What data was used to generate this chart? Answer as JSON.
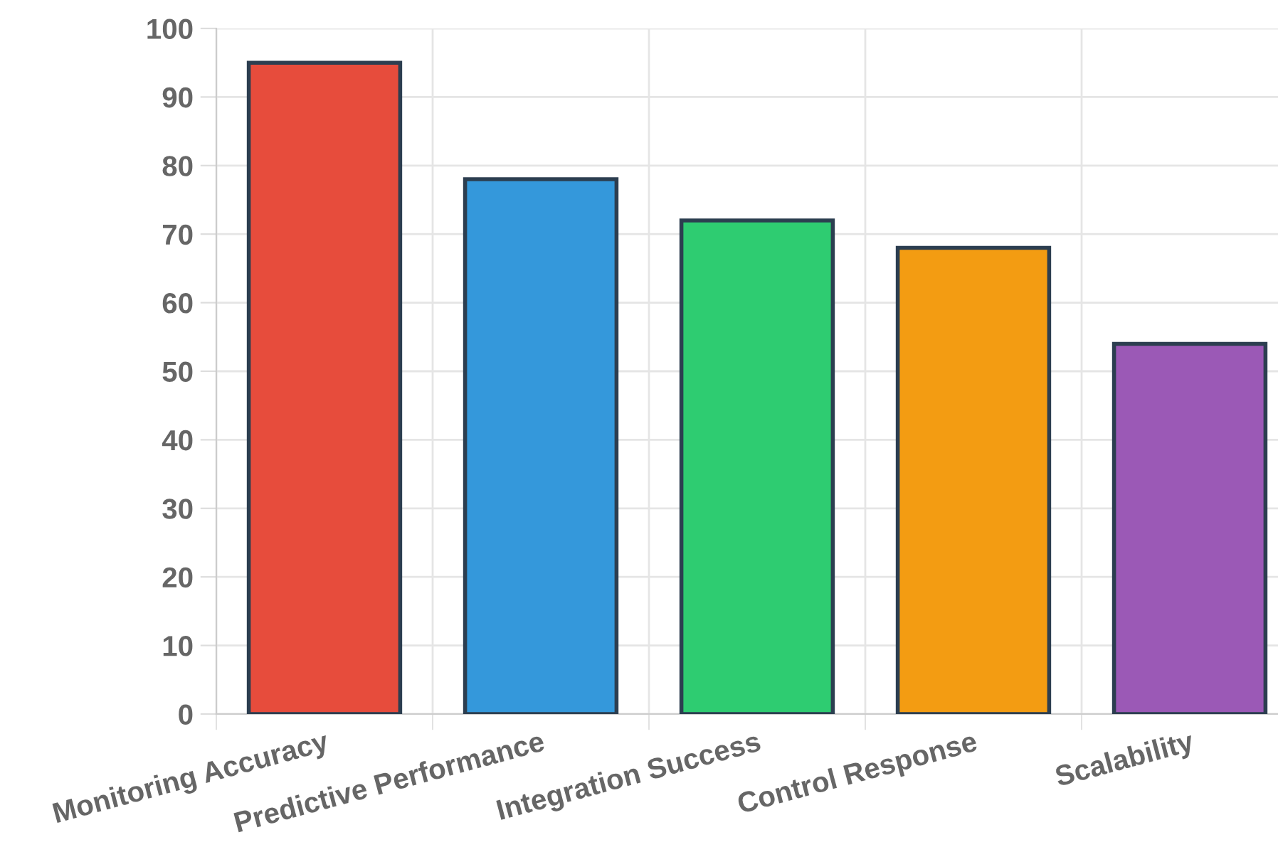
{
  "chart_data": {
    "type": "bar",
    "categories": [
      "Monitoring Accuracy",
      "Predictive Performance",
      "Integration Success",
      "Control Response",
      "Scalability"
    ],
    "values": [
      95,
      78,
      72,
      68,
      54
    ],
    "colors": [
      "#e74c3c",
      "#3498db",
      "#2ecc71",
      "#f39c12",
      "#9b59b6"
    ],
    "ylim": [
      0,
      100
    ],
    "yticks": [
      0,
      10,
      20,
      30,
      40,
      50,
      60,
      70,
      80,
      90,
      100
    ],
    "grid": true
  }
}
